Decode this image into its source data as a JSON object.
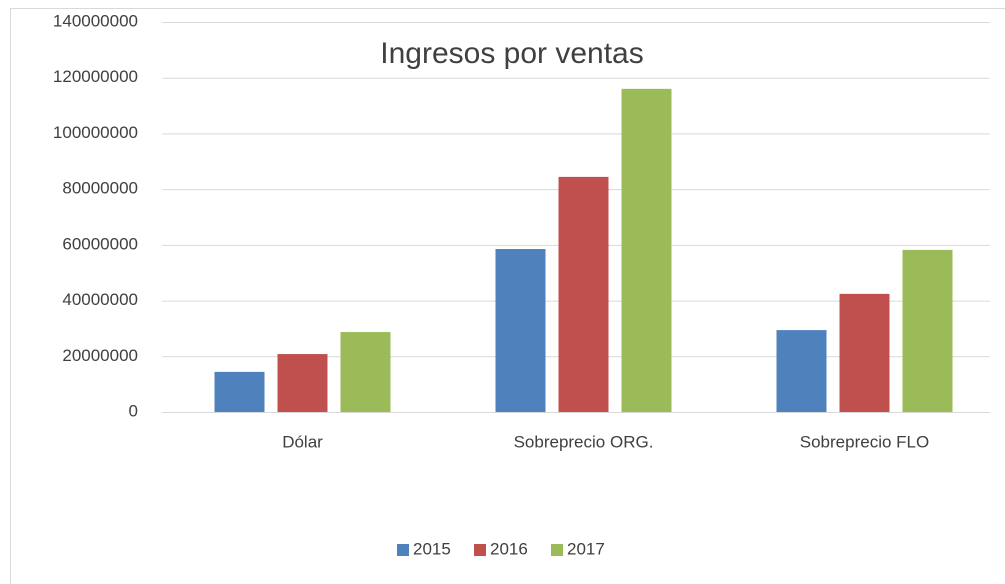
{
  "chart_data": {
    "type": "bar",
    "title": "Ingresos por ventas",
    "categories": [
      "Dólar",
      "Sobreprecio ORG.",
      "Sobreprecio FLO"
    ],
    "series": [
      {
        "name": "2015",
        "color": "#4f81bd",
        "values": [
          14400000,
          58500000,
          29400000
        ]
      },
      {
        "name": "2016",
        "color": "#c0504d",
        "values": [
          20800000,
          84400000,
          42400000
        ]
      },
      {
        "name": "2017",
        "color": "#9bbb59",
        "values": [
          28700000,
          116000000,
          58200000
        ]
      }
    ],
    "ylim": [
      0,
      140000000
    ],
    "yticks": [
      0,
      20000000,
      40000000,
      60000000,
      80000000,
      100000000,
      120000000,
      140000000
    ],
    "grid": true,
    "legend": "bottom"
  }
}
